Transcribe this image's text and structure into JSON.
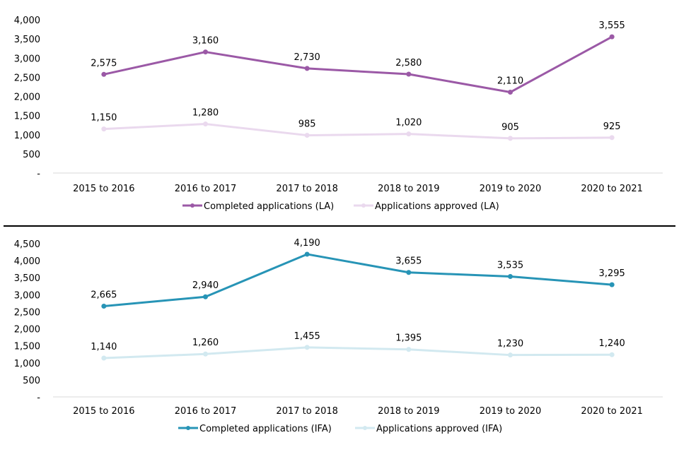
{
  "chart_data": [
    {
      "type": "line",
      "title": "",
      "xlabel": "",
      "ylabel": "",
      "categories": [
        "2015 to 2016",
        "2016 to 2017",
        "2017 to 2018",
        "2018 to 2019",
        "2019 to 2020",
        "2020 to 2021"
      ],
      "ylim": [
        0,
        4000
      ],
      "yticks": [
        0,
        500,
        1000,
        1500,
        2000,
        2500,
        3000,
        3500,
        4000
      ],
      "ytick_labels": [
        "-",
        "500",
        "1,000",
        "1,500",
        "2,000",
        "2,500",
        "3,000",
        "3,500",
        "4,000"
      ],
      "grid": false,
      "legend_position": "bottom",
      "series": [
        {
          "name": "Completed applications (LA)",
          "color": "#9b59a6",
          "values": [
            2575,
            3160,
            2730,
            2580,
            2110,
            3555
          ],
          "labels": [
            "2,575",
            "3,160",
            "2,730",
            "2,580",
            "2,110",
            "3,555"
          ]
        },
        {
          "name": "Applications approved (LA)",
          "color": "#ead9ee",
          "values": [
            1150,
            1280,
            985,
            1020,
            905,
            925
          ],
          "labels": [
            "1,150",
            "1,280",
            "985",
            "1,020",
            "905",
            "925"
          ]
        }
      ]
    },
    {
      "type": "line",
      "title": "",
      "xlabel": "",
      "ylabel": "",
      "categories": [
        "2015 to 2016",
        "2016 to 2017",
        "2017 to 2018",
        "2018 to 2019",
        "2019 to 2020",
        "2020 to 2021"
      ],
      "ylim": [
        0,
        4500
      ],
      "yticks": [
        0,
        500,
        1000,
        1500,
        2000,
        2500,
        3000,
        3500,
        4000,
        4500
      ],
      "ytick_labels": [
        "-",
        "500",
        "1,000",
        "1,500",
        "2,000",
        "2,500",
        "3,000",
        "3,500",
        "4,000",
        "4,500"
      ],
      "grid": false,
      "legend_position": "bottom",
      "series": [
        {
          "name": "Completed applications (IFA)",
          "color": "#2794b6",
          "values": [
            2665,
            2940,
            4190,
            3655,
            3535,
            3295
          ],
          "labels": [
            "2,665",
            "2,940",
            "4,190",
            "3,655",
            "3,535",
            "3,295"
          ]
        },
        {
          "name": "Applications approved (IFA)",
          "color": "#d2e9f0",
          "values": [
            1140,
            1260,
            1455,
            1395,
            1230,
            1240
          ],
          "labels": [
            "1,140",
            "1,260",
            "1,455",
            "1,395",
            "1,230",
            "1,240"
          ]
        }
      ]
    }
  ]
}
